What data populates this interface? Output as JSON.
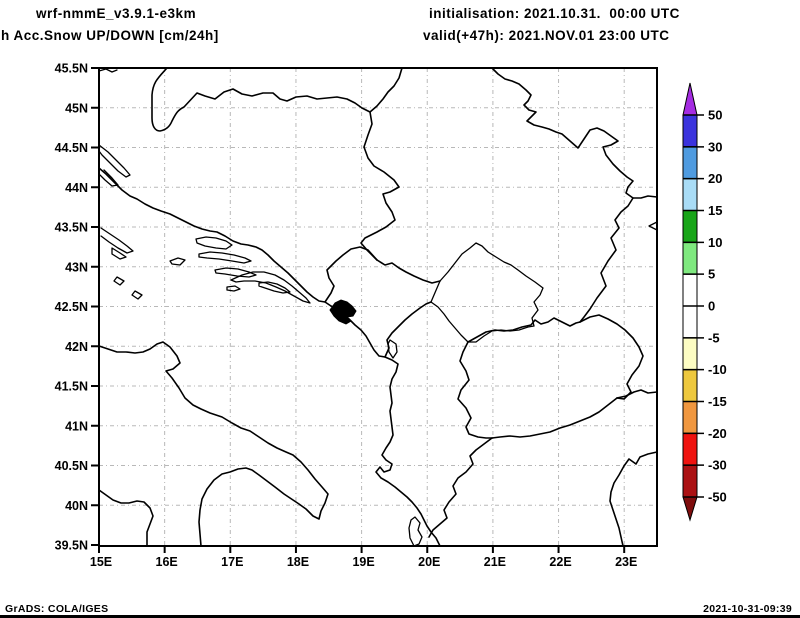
{
  "header": {
    "model": "wrf-nmmE_v3.9.1-e3km",
    "product": "h Acc.Snow UP/DOWN [cm/24h]",
    "init_label": "initialisation: 2021.10.31.  00:00 UTC",
    "valid_label": "valid(+47h): 2021.NOV.01 23:00 UTC"
  },
  "footer": {
    "left": "GrADS: COLA/IGES",
    "right": "2021-10-31-09:39"
  },
  "axes": {
    "lat_labels": [
      "45.5N",
      "45N",
      "44.5N",
      "44N",
      "43.5N",
      "43N",
      "42.5N",
      "42N",
      "41.5N",
      "41N",
      "40.5N",
      "40N",
      "39.5N"
    ],
    "lon_labels": [
      "15E",
      "16E",
      "17E",
      "18E",
      "19E",
      "20E",
      "21E",
      "22E",
      "23E"
    ]
  },
  "colorbar": {
    "units": "cm/24h",
    "levels": [
      "50",
      "30",
      "20",
      "15",
      "10",
      "5",
      "0",
      "-5",
      "-10",
      "-15",
      "-20",
      "-30",
      "-50"
    ],
    "colors": [
      "#a52ce2",
      "#3b33dd",
      "#4f9be0",
      "#a9dcf6",
      "#18a518",
      "#7fe97f",
      "#ffffff",
      "#ffffff",
      "#fdfdc3",
      "#eec83e",
      "#f0973f",
      "#ef130f",
      "#ab1113",
      "#7f0d0d"
    ]
  }
}
